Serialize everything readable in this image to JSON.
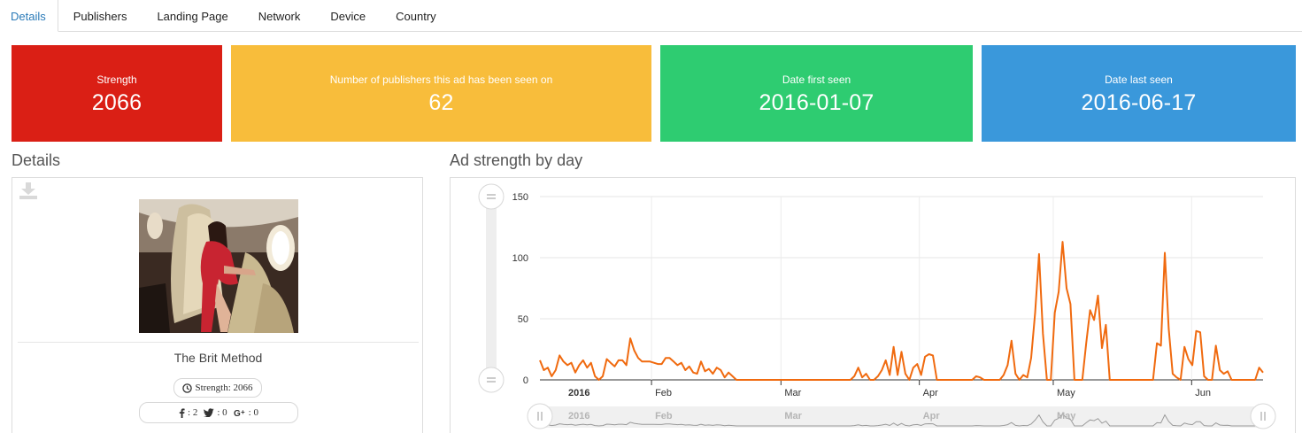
{
  "tabs": [
    {
      "label": "Details",
      "active": true
    },
    {
      "label": "Publishers"
    },
    {
      "label": "Landing Page"
    },
    {
      "label": "Network"
    },
    {
      "label": "Device"
    },
    {
      "label": "Country"
    }
  ],
  "tiles": {
    "strength": {
      "label": "Strength",
      "value": "2066",
      "color": "#da1f15"
    },
    "publishers": {
      "label": "Number of publishers this ad has been seen on",
      "value": "62",
      "color": "#f8bd3b"
    },
    "first_seen": {
      "label": "Date first seen",
      "value": "2016-01-07",
      "color": "#2ecc71"
    },
    "last_seen": {
      "label": "Date last seen",
      "value": "2016-06-17",
      "color": "#3a98db"
    }
  },
  "details": {
    "heading": "Details",
    "ad_title": "The Brit Method",
    "strength_label": "Strength: 2066",
    "social": {
      "facebook": ": 2",
      "twitter": ": 0",
      "gplus": ": 0"
    }
  },
  "chart_section": {
    "heading": "Ad strength by day"
  },
  "chart_data": {
    "type": "line",
    "title": "",
    "xlabel": "",
    "ylabel": "",
    "ylim": [
      0,
      150
    ],
    "yticks": [
      0,
      50,
      100,
      150
    ],
    "xtick_labels": [
      "2016",
      "Feb",
      "Mar",
      "Apr",
      "May",
      "Jun"
    ],
    "navigator_labels": [
      "2016",
      "Feb",
      "Mar",
      "Apr",
      "May"
    ],
    "line_color": "#f06a0f",
    "x_start": "2016-01-07",
    "x_end": "2016-06-17",
    "series": [
      {
        "values": [
          16,
          8,
          10,
          3,
          8,
          20,
          15,
          12,
          14,
          6,
          12,
          16,
          10,
          14,
          3,
          0,
          3,
          17,
          14,
          11,
          16,
          16,
          12,
          34,
          24,
          18,
          15,
          15,
          15,
          14,
          13,
          13,
          18,
          18,
          15,
          12,
          14,
          8,
          11,
          6,
          5,
          15,
          7,
          9,
          5,
          10,
          8,
          2,
          6,
          3,
          0,
          0,
          0,
          0,
          0,
          0,
          0,
          0,
          0,
          0,
          0,
          0,
          0,
          0,
          0,
          0,
          0,
          0,
          0,
          0,
          0,
          0,
          0,
          0,
          0,
          0,
          0,
          0,
          0,
          0,
          3,
          10,
          2,
          5,
          0,
          0,
          3,
          8,
          16,
          4,
          27,
          4,
          23,
          5,
          0,
          10,
          13,
          4,
          19,
          21,
          20,
          0,
          0,
          0,
          0,
          0,
          0,
          0,
          0,
          0,
          0,
          3,
          2,
          0,
          0,
          0,
          0,
          0,
          4,
          12,
          32,
          5,
          0,
          4,
          2,
          18,
          55,
          103,
          38,
          0,
          0,
          55,
          72,
          113,
          75,
          62,
          0,
          0,
          0,
          30,
          57,
          49,
          69,
          26,
          45,
          0,
          0,
          0,
          0,
          0,
          0,
          0,
          0,
          0,
          0,
          0,
          0,
          30,
          28,
          104,
          42,
          5,
          2,
          0,
          27,
          17,
          12,
          40,
          39,
          3,
          0,
          0,
          28,
          8,
          5,
          7,
          0,
          0,
          0,
          0,
          0,
          0,
          0,
          10,
          6
        ]
      }
    ]
  }
}
